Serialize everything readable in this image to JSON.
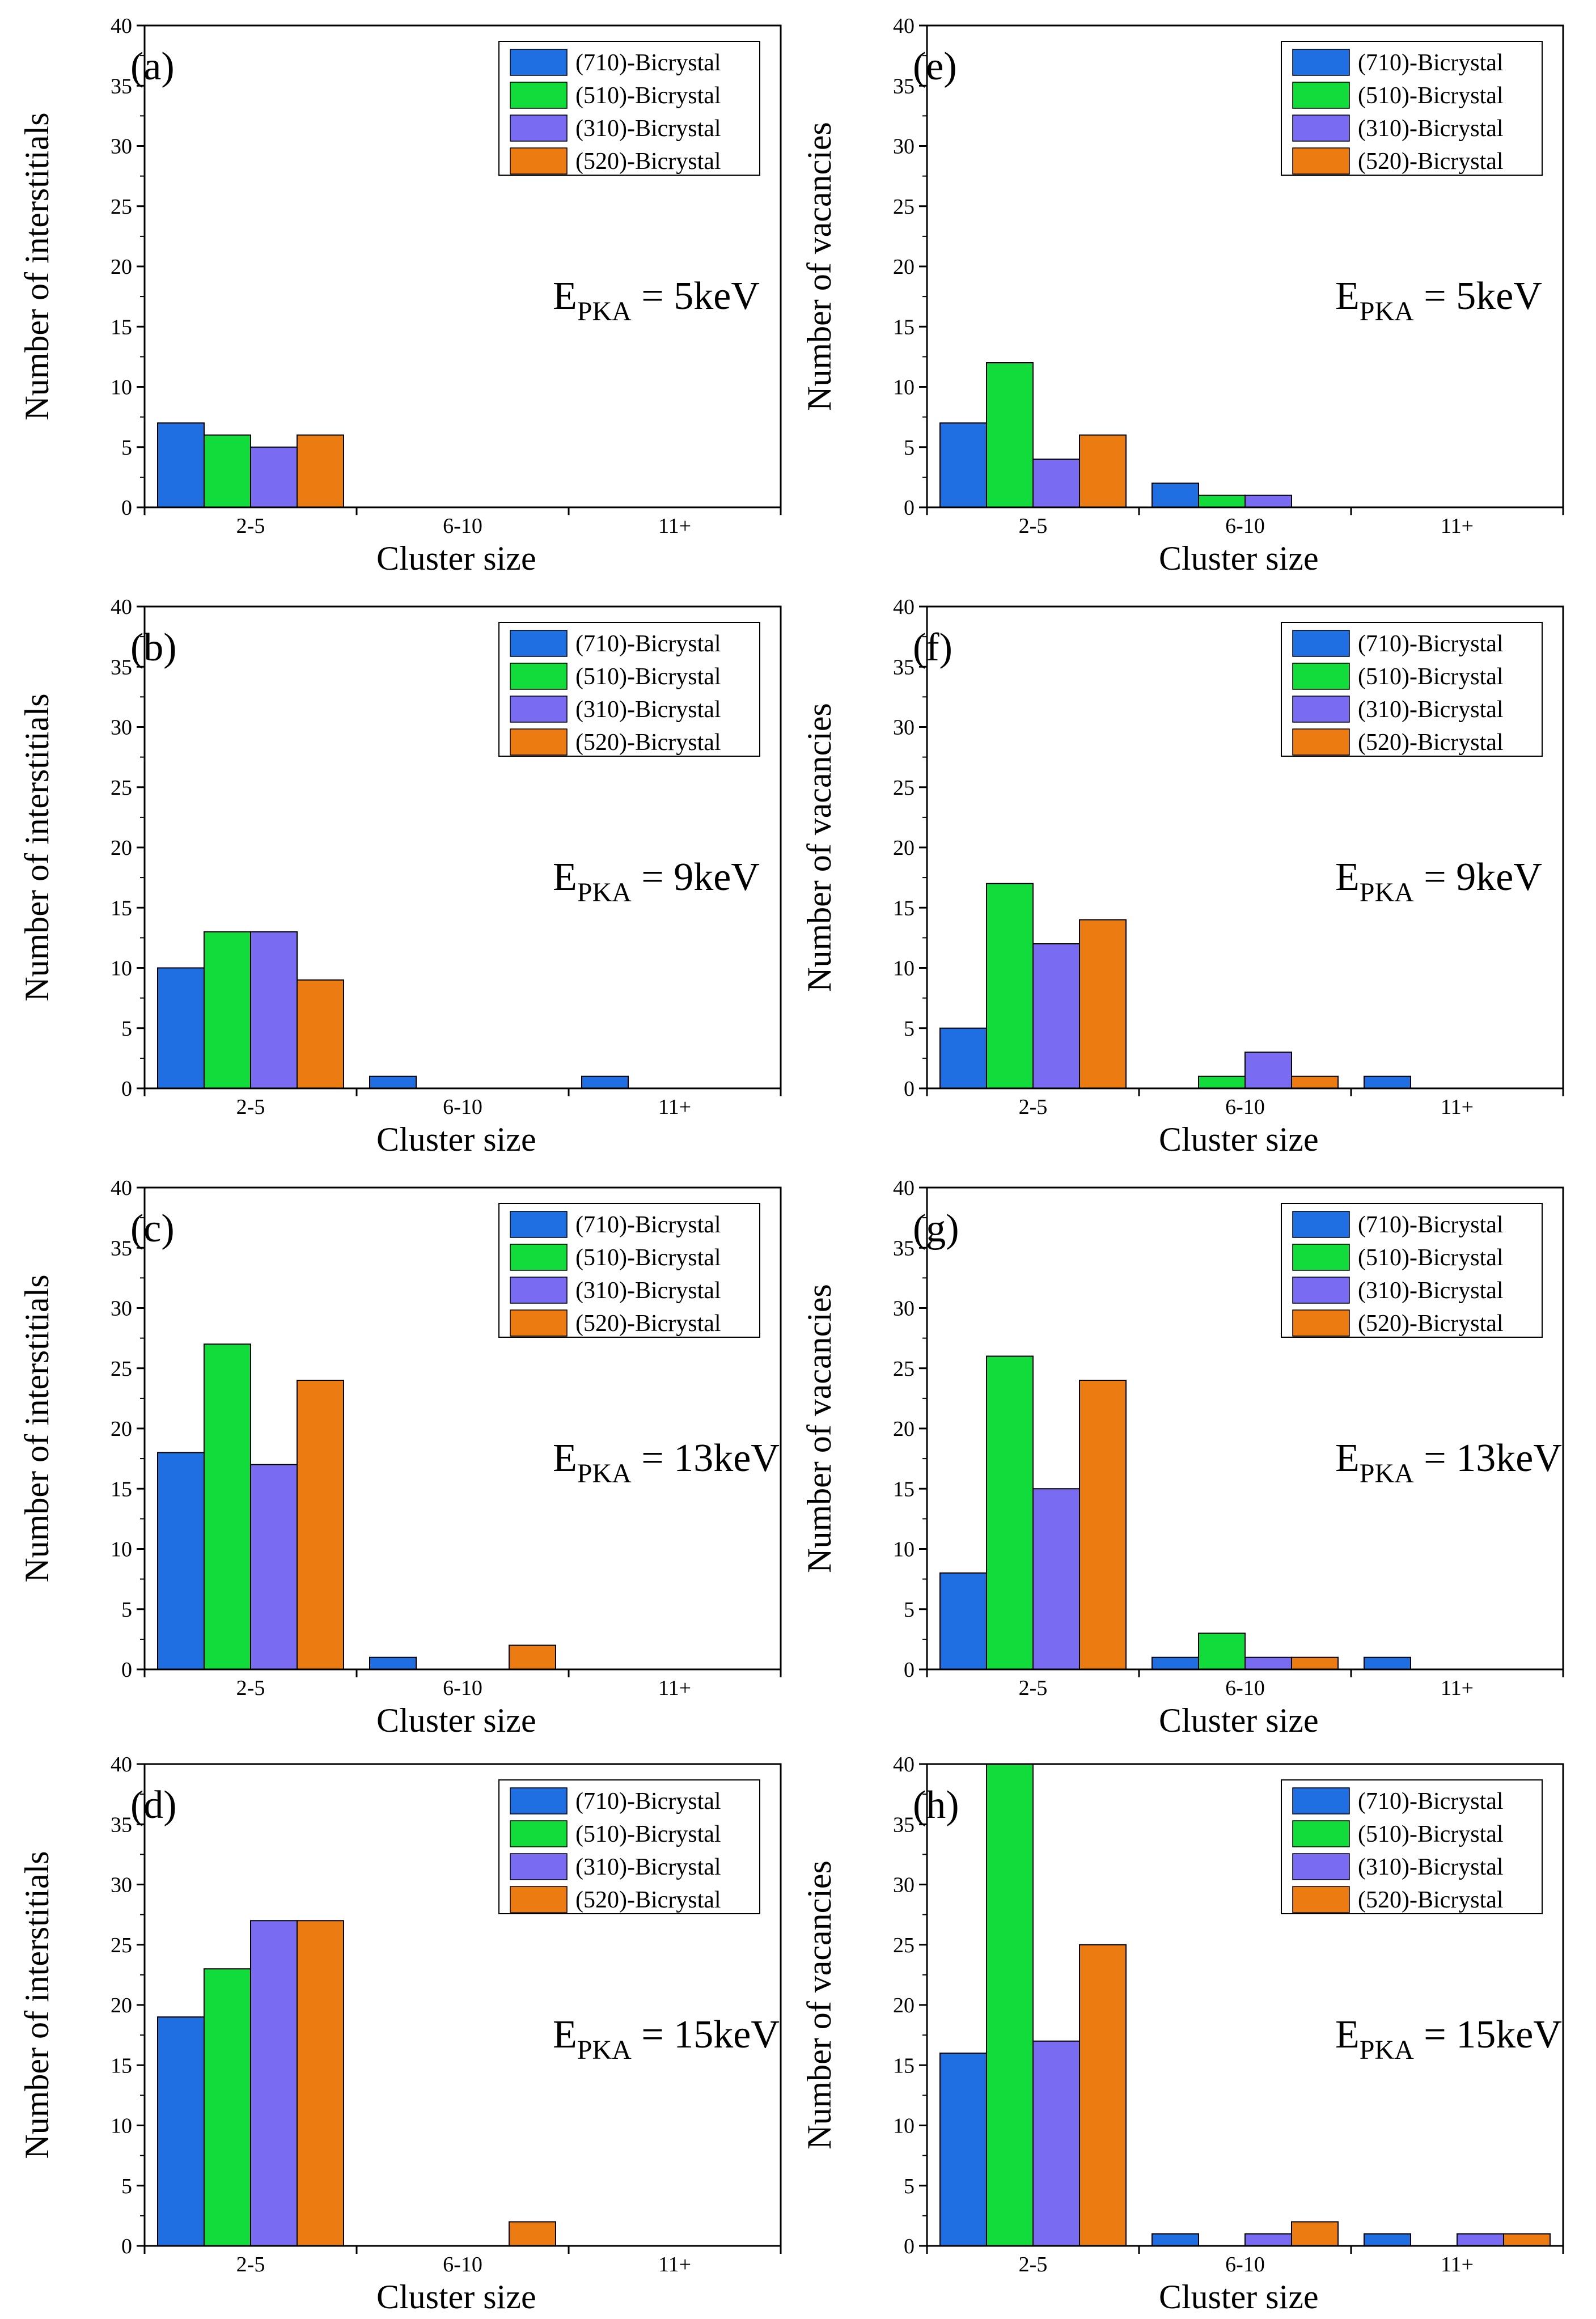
{
  "figure": {
    "categories": [
      "2-5",
      "6-10",
      "11+"
    ],
    "xlabel": "Cluster size",
    "ylim": [
      0,
      40
    ],
    "yticks": [
      0,
      5,
      10,
      15,
      20,
      25,
      30,
      35,
      40
    ],
    "series_names": [
      "(710)-Bicrystal",
      "(510)-Bicrystal",
      "(310)-Bicrystal",
      "(520)-Bicrystal"
    ],
    "series_colors": [
      "#1f6fe3",
      "#12dc3c",
      "#7a6cf2",
      "#ec7b12"
    ]
  },
  "chart_data": [
    {
      "panel": "(a)",
      "type": "bar",
      "ylabel": "Number of interstitials",
      "annotation": {
        "main": "E",
        "sub": "PKA",
        "rest": " = 5keV"
      },
      "categories": [
        "2-5",
        "6-10",
        "11+"
      ],
      "ylim": [
        0,
        40
      ],
      "xlabel": "Cluster size",
      "legend": "top-right",
      "series": [
        {
          "name": "(710)-Bicrystal",
          "values": [
            7,
            0,
            0
          ]
        },
        {
          "name": "(510)-Bicrystal",
          "values": [
            6,
            0,
            0
          ]
        },
        {
          "name": "(310)-Bicrystal",
          "values": [
            5,
            0,
            0
          ]
        },
        {
          "name": "(520)-Bicrystal",
          "values": [
            6,
            0,
            0
          ]
        }
      ]
    },
    {
      "panel": "(b)",
      "type": "bar",
      "ylabel": "Number of interstitials",
      "annotation": {
        "main": "E",
        "sub": "PKA",
        "rest": " = 9keV"
      },
      "categories": [
        "2-5",
        "6-10",
        "11+"
      ],
      "ylim": [
        0,
        40
      ],
      "xlabel": "Cluster size",
      "legend": "top-right",
      "series": [
        {
          "name": "(710)-Bicrystal",
          "values": [
            10,
            1,
            1
          ]
        },
        {
          "name": "(510)-Bicrystal",
          "values": [
            13,
            0,
            0
          ]
        },
        {
          "name": "(310)-Bicrystal",
          "values": [
            13,
            0,
            0
          ]
        },
        {
          "name": "(520)-Bicrystal",
          "values": [
            9,
            0,
            0
          ]
        }
      ]
    },
    {
      "panel": "(c)",
      "type": "bar",
      "ylabel": "Number of interstitials",
      "annotation": {
        "main": "E",
        "sub": "PKA",
        "rest": " = 13keV"
      },
      "categories": [
        "2-5",
        "6-10",
        "11+"
      ],
      "ylim": [
        0,
        40
      ],
      "xlabel": "Cluster size",
      "legend": "top-right",
      "series": [
        {
          "name": "(710)-Bicrystal",
          "values": [
            18,
            1,
            0
          ]
        },
        {
          "name": "(510)-Bicrystal",
          "values": [
            27,
            0,
            0
          ]
        },
        {
          "name": "(310)-Bicrystal",
          "values": [
            17,
            0,
            0
          ]
        },
        {
          "name": "(520)-Bicrystal",
          "values": [
            24,
            2,
            0
          ]
        }
      ]
    },
    {
      "panel": "(d)",
      "type": "bar",
      "ylabel": "Number of interstitials",
      "annotation": {
        "main": "E",
        "sub": "PKA",
        "rest": " = 15keV"
      },
      "categories": [
        "2-5",
        "6-10",
        "11+"
      ],
      "ylim": [
        0,
        40
      ],
      "xlabel": "Cluster size",
      "legend": "top-right",
      "series": [
        {
          "name": "(710)-Bicrystal",
          "values": [
            19,
            0,
            0
          ]
        },
        {
          "name": "(510)-Bicrystal",
          "values": [
            23,
            0,
            0
          ]
        },
        {
          "name": "(310)-Bicrystal",
          "values": [
            27,
            0,
            0
          ]
        },
        {
          "name": "(520)-Bicrystal",
          "values": [
            27,
            2,
            0
          ]
        }
      ]
    },
    {
      "panel": "(e)",
      "type": "bar",
      "ylabel": "Number of vacancies",
      "annotation": {
        "main": "E",
        "sub": "PKA",
        "rest": " = 5keV"
      },
      "categories": [
        "2-5",
        "6-10",
        "11+"
      ],
      "ylim": [
        0,
        40
      ],
      "xlabel": "Cluster size",
      "legend": "top-right",
      "series": [
        {
          "name": "(710)-Bicrystal",
          "values": [
            7,
            2,
            0
          ]
        },
        {
          "name": "(510)-Bicrystal",
          "values": [
            12,
            1,
            0
          ]
        },
        {
          "name": "(310)-Bicrystal",
          "values": [
            4,
            1,
            0
          ]
        },
        {
          "name": "(520)-Bicrystal",
          "values": [
            6,
            0,
            0
          ]
        }
      ]
    },
    {
      "panel": "(f)",
      "type": "bar",
      "ylabel": "Number of vacancies",
      "annotation": {
        "main": "E",
        "sub": "PKA",
        "rest": " = 9keV"
      },
      "categories": [
        "2-5",
        "6-10",
        "11+"
      ],
      "ylim": [
        0,
        40
      ],
      "xlabel": "Cluster size",
      "legend": "top-right",
      "series": [
        {
          "name": "(710)-Bicrystal",
          "values": [
            5,
            0,
            1
          ]
        },
        {
          "name": "(510)-Bicrystal",
          "values": [
            17,
            1,
            0
          ]
        },
        {
          "name": "(310)-Bicrystal",
          "values": [
            12,
            3,
            0
          ]
        },
        {
          "name": "(520)-Bicrystal",
          "values": [
            14,
            1,
            0
          ]
        }
      ]
    },
    {
      "panel": "(g)",
      "type": "bar",
      "ylabel": "Number of vacancies",
      "annotation": {
        "main": "E",
        "sub": "PKA",
        "rest": " = 13keV"
      },
      "categories": [
        "2-5",
        "6-10",
        "11+"
      ],
      "ylim": [
        0,
        40
      ],
      "xlabel": "Cluster size",
      "legend": "top-right",
      "series": [
        {
          "name": "(710)-Bicrystal",
          "values": [
            8,
            1,
            1
          ]
        },
        {
          "name": "(510)-Bicrystal",
          "values": [
            26,
            3,
            0
          ]
        },
        {
          "name": "(310)-Bicrystal",
          "values": [
            15,
            1,
            0
          ]
        },
        {
          "name": "(520)-Bicrystal",
          "values": [
            24,
            1,
            0
          ]
        }
      ]
    },
    {
      "panel": "(h)",
      "type": "bar",
      "ylabel": "Number of vacancies",
      "annotation": {
        "main": "E",
        "sub": "PKA",
        "rest": " = 15keV"
      },
      "categories": [
        "2-5",
        "6-10",
        "11+"
      ],
      "ylim": [
        0,
        40
      ],
      "xlabel": "Cluster size",
      "legend": "top-right",
      "series": [
        {
          "name": "(710)-Bicrystal",
          "values": [
            16,
            1,
            1
          ]
        },
        {
          "name": "(510)-Bicrystal",
          "values": [
            40,
            0,
            0
          ]
        },
        {
          "name": "(310)-Bicrystal",
          "values": [
            17,
            1,
            1
          ]
        },
        {
          "name": "(520)-Bicrystal",
          "values": [
            25,
            2,
            1
          ]
        }
      ]
    }
  ]
}
